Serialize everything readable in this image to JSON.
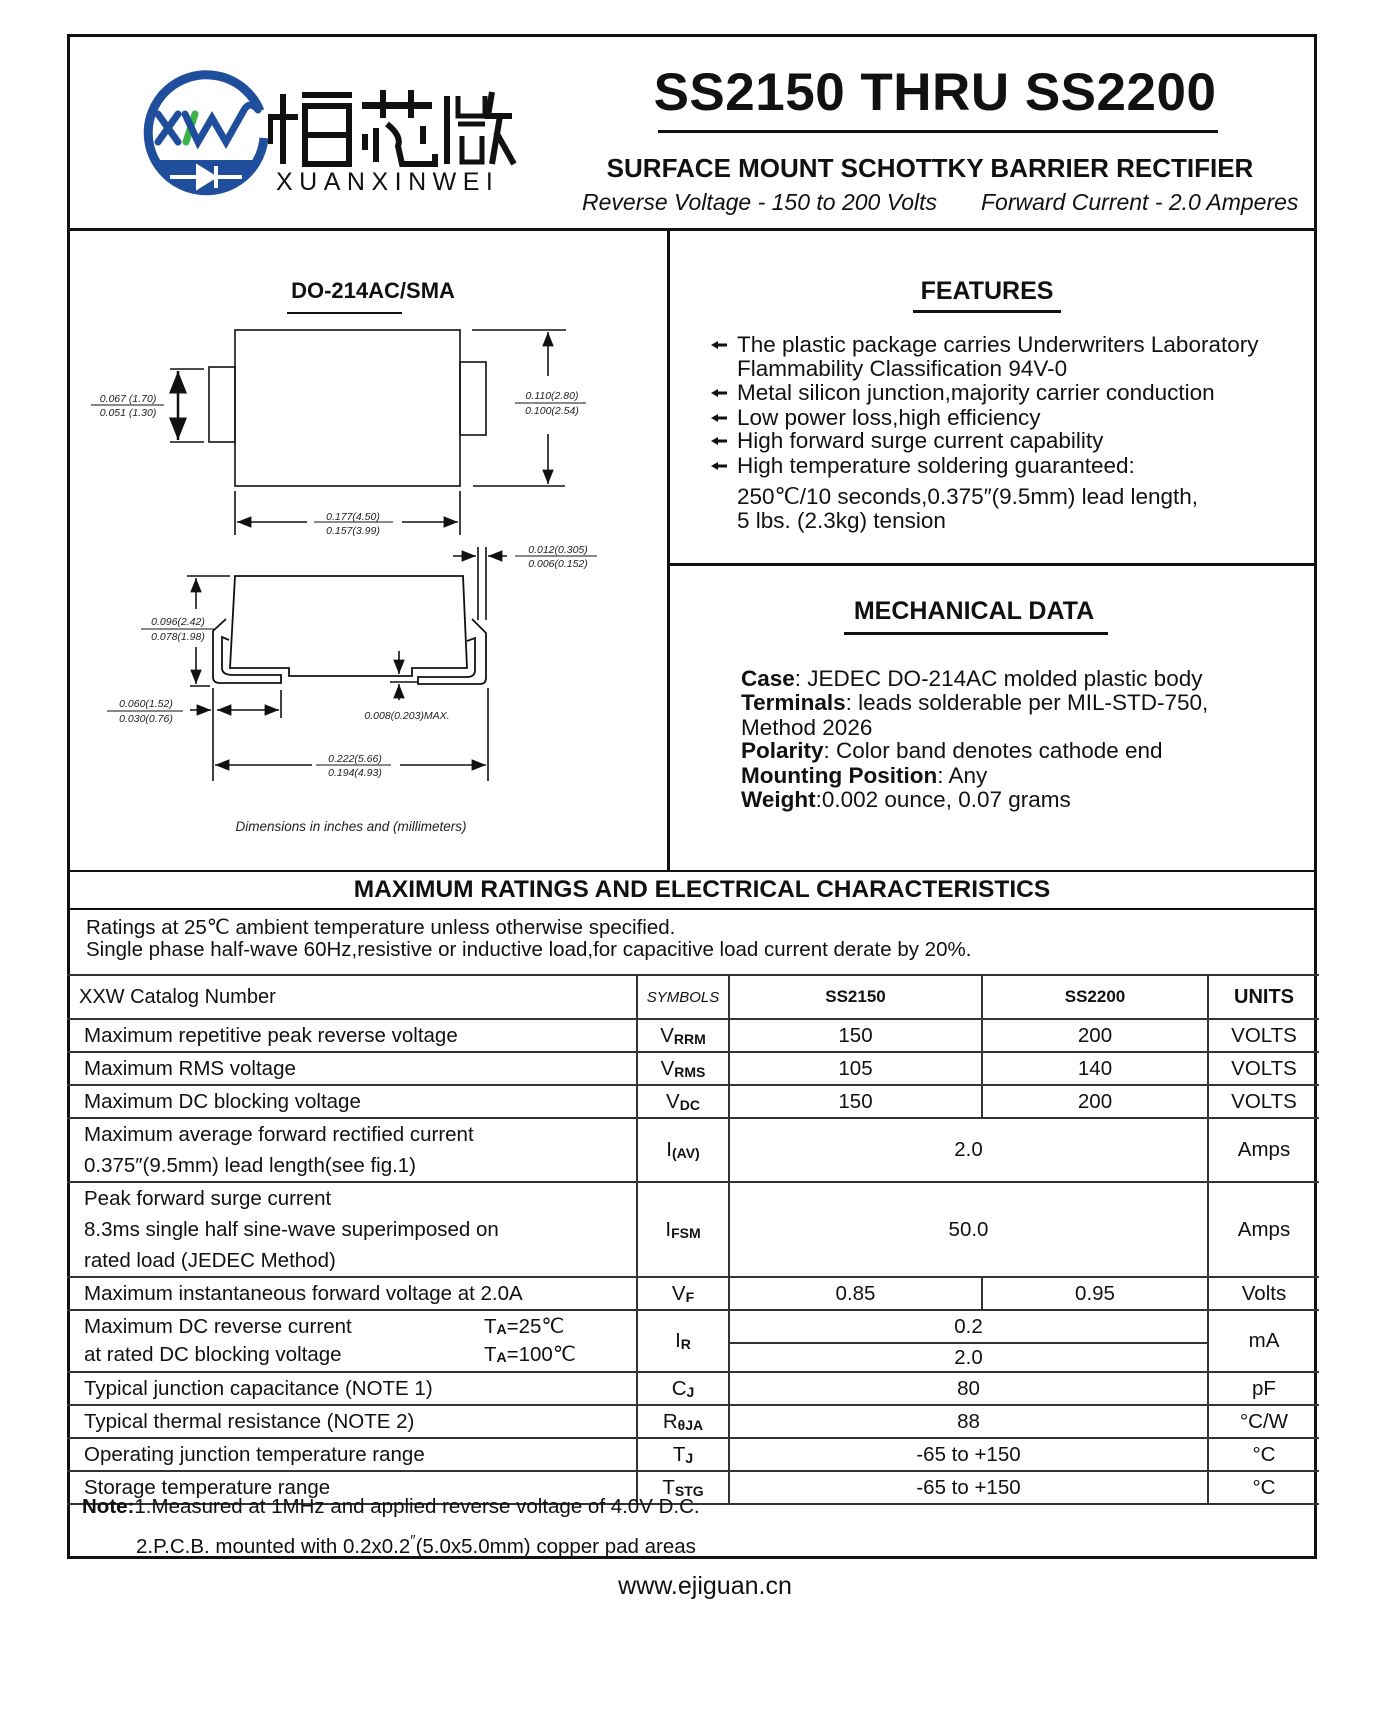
{
  "logo": {
    "mark_text": "XXW",
    "chinese_name": "烜芯微",
    "latin_name": "XUANXINWEI",
    "colors": {
      "blue": "#1f4e9c",
      "green": "#3cb44a"
    }
  },
  "header": {
    "title": "SS2150 THRU SS2200",
    "subtitle": "SURFACE MOUNT SCHOTTKY BARRIER RECTIFIER",
    "reverse_voltage": "Reverse Voltage - 150 to 200 Volts",
    "forward_current": "Forward Current - 2.0 Amperes"
  },
  "package": {
    "title": "DO-214AC/SMA",
    "dims": {
      "pad_height": [
        "0.067 (1.70)",
        "0.051 (1.30)"
      ],
      "body_width": [
        "0.110(2.80)",
        "0.100(2.54)"
      ],
      "body_length": [
        "0.177(4.50)",
        "0.157(3.99)"
      ],
      "lead_thickness": [
        "0.012(0.305)",
        "0.006(0.152)"
      ],
      "height": [
        "0.096(2.42)",
        "0.078(1.98)"
      ],
      "lead_length": [
        "0.060(1.52)",
        "0.030(0.76)"
      ],
      "standoff": "0.008(0.203)MAX.",
      "overall_length": [
        "0.222(5.66)",
        "0.194(4.93)"
      ]
    },
    "caption": "Dimensions in inches and (millimeters)"
  },
  "features": {
    "title": "FEATURES",
    "bullet_icon": "diamond-arrow-bullet",
    "items": [
      "The plastic package carries Underwriters Laboratory",
      "Flammability Classification 94V-0",
      "Metal silicon junction,majority carrier conduction",
      "Low power loss,high efficiency",
      "High forward surge current capability",
      "High temperature soldering guaranteed:",
      "250℃/10 seconds,0.375″(9.5mm) lead length,",
      "5 lbs. (2.3kg) tension"
    ]
  },
  "mechanical": {
    "title": "MECHANICAL DATA",
    "items": [
      {
        "label": "Case",
        "value": ": JEDEC DO-214AC molded plastic body"
      },
      {
        "label": "Terminals",
        "value": ": leads solderable per MIL-STD-750,"
      },
      {
        "label": "",
        "value": "Method 2026"
      },
      {
        "label": "Polarity",
        "value": ": Color band denotes cathode end"
      },
      {
        "label": "Mounting Position",
        "value": ": Any"
      },
      {
        "label": "Weight",
        "value": ":0.002 ounce, 0.07 grams"
      }
    ]
  },
  "ratings": {
    "title": "MAXIMUM RATINGS AND ELECTRICAL CHARACTERISTICS",
    "notes": [
      "Ratings at 25℃ ambient temperature unless otherwise specified.",
      "Single phase half-wave 60Hz,resistive or inductive load,for capacitive load current derate by 20%."
    ],
    "columns": {
      "param": "XXW Catalog  Number",
      "symbol": "SYMBOLS",
      "part1": "SS2150",
      "part2": "SS2200",
      "units": "UNITS"
    },
    "rows": [
      {
        "param": [
          "Maximum repetitive peak reverse voltage"
        ],
        "sym": "V",
        "sub": "RRM",
        "v1": "150",
        "v2": "200",
        "unit": "VOLTS"
      },
      {
        "param": [
          "Maximum RMS voltage"
        ],
        "sym": "V",
        "sub": "RMS",
        "v1": "105",
        "v2": "140",
        "unit": "VOLTS"
      },
      {
        "param": [
          "Maximum DC blocking voltage"
        ],
        "sym": "V",
        "sub": "DC",
        "v1": "150",
        "v2": "200",
        "unit": "VOLTS"
      },
      {
        "param": [
          "Maximum average forward rectified current",
          "0.375″(9.5mm) lead length(see fig.1)"
        ],
        "sym": "I",
        "sub": "(AV)",
        "v": "2.0",
        "unit": "Amps"
      },
      {
        "param": [
          "Peak forward surge current",
          "8.3ms single half sine-wave superimposed on",
          "rated load (JEDEC Method)"
        ],
        "sym": "I",
        "sub": "FSM",
        "v": "50.0",
        "unit": "Amps"
      },
      {
        "param": [
          "Maximum instantaneous forward voltage at 2.0A"
        ],
        "sym": "V",
        "sub": "F",
        "v1": "0.85",
        "v2": "0.95",
        "unit": "Volts"
      },
      {
        "param": [
          "Maximum DC reverse current",
          "at rated DC blocking voltage"
        ],
        "conditions": [
          {
            "t": "T",
            "sub": "A",
            "val": "=25℃"
          },
          {
            "t": "T",
            "sub": "A",
            "val": "=100℃"
          }
        ],
        "sym": "I",
        "sub": "R",
        "vs": [
          "0.2",
          "2.0"
        ],
        "unit": "mA"
      },
      {
        "param": [
          "Typical junction capacitance (NOTE 1)"
        ],
        "sym": "C",
        "sub": "J",
        "v": "80",
        "unit": "pF"
      },
      {
        "param": [
          "Typical thermal resistance (NOTE 2)"
        ],
        "sym": "R",
        "sub": "θJA",
        "v": "88",
        "unit": "°C/W"
      },
      {
        "param": [
          "Operating junction temperature range"
        ],
        "sym": "T",
        "sub": "J",
        "v": "-65 to +150",
        "unit": "°C"
      },
      {
        "param": [
          "Storage temperature range"
        ],
        "sym": "T",
        "sub": "STG",
        "v": "-65 to +150",
        "unit": "°C"
      }
    ],
    "footnotes": {
      "label": "Note:",
      "note1": "1.Measured at 1MHz and applied reverse voltage of 4.0V D.C.",
      "note2_a": "2.P.C.B. mounted with 0.2x0.2",
      "note2_mark": "″",
      "note2_b": "(5.0x5.0mm) copper pad areas"
    }
  },
  "footer": {
    "website": "www.ejiguan.cn"
  }
}
